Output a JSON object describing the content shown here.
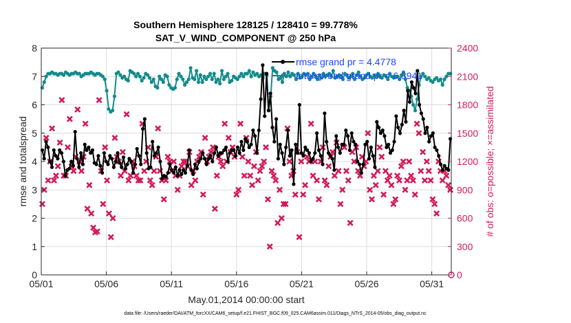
{
  "chart_data": {
    "type": "line",
    "title_line1": "Southern Hemisphere 128125 / 128410 = 99.778%",
    "title_line2": "SAT_V_WIND_COMPONENT @ 250 hPa",
    "xlabel": "May.01,2014 00:00:00 start",
    "ylabel_left": "rmse and totalspread",
    "ylabel_right": "# of obs: o=possible; ×=assimilated",
    "x_tick_labels": [
      "05/01",
      "05/06",
      "05/11",
      "05/16",
      "05/21",
      "05/26",
      "05/31"
    ],
    "x_tick_days": [
      0,
      5,
      10,
      15,
      20,
      25,
      30
    ],
    "xlim_days": [
      0,
      31.5
    ],
    "y_left_ticks": [
      "0",
      "1",
      "2",
      "3",
      "4",
      "5",
      "6",
      "7",
      "8"
    ],
    "ylim_left": [
      0,
      8
    ],
    "y_right_ticks": [
      "0",
      "300",
      "600",
      "900",
      "1200",
      "1500",
      "1800",
      "2100",
      "2400"
    ],
    "ylim_right": [
      0,
      2400
    ],
    "grid": true,
    "legend_position": "top-right",
    "legend": [
      "rmse grand pr = 4.4778",
      "totalspread grand pr = 6.8941"
    ],
    "colors": {
      "rmse": "#000000",
      "totalspread": "#128b8b",
      "obs": "#d11b5a",
      "legend_text": "#1a46ff"
    },
    "series": [
      {
        "name": "rmse grand pr = 4.4778",
        "axis": "left",
        "style": "line-dot",
        "values": [
          4.4,
          4.1,
          4.7,
          4.5,
          4.0,
          3.8,
          4.4,
          4.2,
          4.1,
          4.4,
          4.3,
          4.0,
          3.5,
          3.7,
          3.75,
          4.0,
          3.85,
          5.05,
          4.1,
          3.8,
          4.3,
          3.9,
          4.6,
          4.4,
          4.5,
          4.3,
          4.4,
          3.95,
          3.9,
          4.2,
          3.85,
          3.6,
          4.3,
          4.0,
          3.9,
          4.2,
          4.1,
          3.8,
          4.0,
          4.3,
          3.95,
          3.8,
          4.15,
          3.75,
          3.9,
          4.1,
          4.0,
          3.6,
          3.9,
          4.45,
          4.2,
          3.9,
          5.15,
          5.5,
          4.3,
          3.75,
          3.8,
          4.7,
          4.2,
          4.3,
          4.5,
          4.0,
          3.4,
          3.5,
          3.45,
          3.6,
          3.9,
          3.7,
          3.6,
          3.8,
          3.5,
          3.7,
          3.55,
          3.7,
          3.6,
          3.85,
          4.4,
          3.7,
          3.55,
          3.9,
          3.75,
          4.0,
          4.1,
          4.3,
          4.1,
          3.9,
          4.1,
          4.2,
          4.0,
          4.3,
          4.5,
          4.2,
          4.3,
          4.3,
          4.4,
          4.5,
          4.0,
          4.3,
          4.4,
          4.4,
          4.2,
          4.5,
          4.3,
          4.7,
          4.4,
          4.8,
          4.7,
          4.5,
          4.6,
          5.1,
          4.9,
          4.3,
          5.1,
          6.2,
          7.4,
          5.6,
          7.1,
          5.8,
          6.4,
          5.2,
          4.7,
          5.5,
          4.1,
          4.6,
          4.3,
          3.9,
          4.5,
          5.1,
          4.2,
          4.4,
          3.2,
          4.6,
          4.3,
          6.0,
          4.3,
          4.2,
          4.5,
          4.4,
          4.3,
          4.0,
          4.1,
          4.3,
          5.0,
          4.4,
          4.2,
          3.9,
          5.7,
          4.7,
          4.3,
          4.2,
          4.1,
          3.7,
          4.9,
          4.5,
          4.3,
          4.6,
          4.6,
          5.1,
          4.9,
          4.4,
          5.0,
          4.7,
          4.6,
          4.0,
          3.9,
          3.6,
          3.9,
          4.6,
          4.7,
          4.1,
          4.5,
          4.2,
          3.8,
          5.4,
          5.2,
          5.0,
          5.1,
          4.9,
          4.5,
          4.6,
          4.3,
          4.4,
          4.7,
          5.6,
          5.2,
          5.0,
          5.3,
          5.8,
          5.4,
          6.5,
          6.1,
          6.8,
          6.6,
          6.4,
          7.2,
          6.0,
          5.7,
          5.5,
          5.0,
          5.2,
          4.7,
          4.9,
          5.0,
          4.5,
          4.4,
          4.2,
          3.9,
          3.7,
          3.85,
          3.75,
          3.7,
          4.8
        ]
      },
      {
        "name": "totalspread grand pr = 6.8941",
        "axis": "left",
        "style": "line-dot",
        "values": [
          6.6,
          6.8,
          7.0,
          7.1,
          7.1,
          7.15,
          7.1,
          7.1,
          7.05,
          7.1,
          7.1,
          7.05,
          7.15,
          7.1,
          7.05,
          7.1,
          7.1,
          7.15,
          7.1,
          7.1,
          7.0,
          7.05,
          7.1,
          7.1,
          7.1,
          7.15,
          7.1,
          7.05,
          7.1,
          7.1,
          7.05,
          7.0,
          6.9,
          6.5,
          5.85,
          5.75,
          5.8,
          6.3,
          7.1,
          7.15,
          7.05,
          6.95,
          7.0,
          6.9,
          6.85,
          7.2,
          7.15,
          7.1,
          7.0,
          7.1,
          7.0,
          6.85,
          6.95,
          7.1,
          7.05,
          6.95,
          6.8,
          6.9,
          6.65,
          6.6,
          7.0,
          6.9,
          6.8,
          7.05,
          7.0,
          6.7,
          6.6,
          6.55,
          6.6,
          6.9,
          7.1,
          7.0,
          6.9,
          6.7,
          6.8,
          6.9,
          7.3,
          6.95,
          6.9,
          7.2,
          6.8,
          7.05,
          6.8,
          7.0,
          6.9,
          7.0,
          7.1,
          6.9,
          7.1,
          6.8,
          6.9,
          6.75,
          7.2,
          6.9,
          7.0,
          7.1,
          6.8,
          6.85,
          7.0,
          6.95,
          6.9,
          7.0,
          7.1,
          7.0,
          7.1,
          7.1,
          7.2,
          7.0,
          7.15,
          7.05,
          7.1,
          7.0,
          7.05,
          6.95,
          7.1,
          7.05,
          5.8,
          6.3,
          7.3,
          7.2,
          7.15,
          6.9,
          6.95,
          6.8,
          7.1,
          7.0,
          7.15,
          7.0,
          7.1,
          7.05,
          6.9,
          7.1,
          6.95,
          7.0,
          7.1,
          7.05,
          7.1,
          6.9,
          7.0,
          7.1,
          7.0,
          6.9,
          7.05,
          6.95,
          7.1,
          7.0,
          7.05,
          7.1,
          7.0,
          7.2,
          6.95,
          7.0,
          7.05,
          7.0,
          6.9,
          7.1,
          7.05,
          6.95,
          7.0,
          7.1,
          6.9,
          7.05,
          7.15,
          7.0,
          6.9,
          6.95,
          7.05,
          7.1,
          7.0,
          6.95,
          7.05,
          7.0,
          7.1,
          7.0,
          6.95,
          7.05,
          7.0,
          6.9,
          7.1,
          7.0,
          6.95,
          7.0,
          7.0,
          6.9,
          7.05,
          7.15,
          6.9,
          6.6,
          6.5,
          6.3,
          6.0,
          5.8,
          6.2,
          6.7,
          7.0,
          7.1,
          7.0,
          6.9,
          6.95,
          6.85,
          6.8,
          6.9,
          6.95,
          6.85,
          6.9,
          6.7,
          6.9,
          7.0,
          7.1,
          7.1
        ]
      },
      {
        "name": "",
        "axis": "right",
        "style": "marker-x",
        "values": [
          750,
          900,
          1450,
          1000,
          1200,
          1550,
          1000,
          1050,
          1150,
          1400,
          1850,
          1050,
          1050,
          1350,
          1650,
          1150,
          1100,
          1250,
          1750,
          1200,
          1100,
          1250,
          1600,
          700,
          950,
          650,
          500,
          450,
          460,
          1850,
          1100,
          750,
          1350,
          1000,
          650,
          400,
          600,
          1450,
          1250,
          1200,
          1050,
          1300,
          1100,
          1700,
          1000,
          1050,
          1200,
          1150,
          1050,
          1000,
          1000,
          1600,
          1100,
          1200,
          1350,
          1000,
          950,
          1100,
          1250,
          1550,
          1100,
          1000,
          800,
          1000,
          1250,
          1200,
          1100,
          1200,
          1050,
          900,
          1050,
          1150,
          1200,
          1200,
          1150,
          1300,
          950,
          1100,
          1000,
          1200,
          1250,
          1300,
          850,
          1450,
          1200,
          1250,
          1300,
          1350,
          700,
          1050,
          1250,
          1200,
          1150,
          1600,
          1200,
          1450,
          1300,
          1350,
          1250,
          850,
          900,
          1600,
          1250,
          1050,
          1450,
          1200,
          1050,
          950,
          1150,
          1300,
          1000,
          1100,
          1150,
          1200,
          1350,
          800,
          300,
          1100,
          1050,
          1000,
          550,
          900,
          600,
          750,
          750,
          1550,
          1200,
          1050,
          1100,
          850,
          1300,
          400,
          1200,
          850,
          950,
          1250,
          1200,
          1600,
          1050,
          1200,
          1000,
          800,
          1200,
          1350,
          1000,
          950,
          1150,
          1250,
          1300,
          1050,
          1400,
          1100,
          750,
          900,
          1350,
          1100,
          1000,
          550,
          1300,
          1200,
          1350,
          1100,
          1050,
          1250,
          1150,
          1200,
          1500,
          900,
          800,
          1050,
          950,
          1100,
          1350,
          1250,
          850,
          1100,
          1000,
          1050,
          950,
          750,
          800,
          1050,
          1000,
          1150,
          1200,
          900,
          1000,
          1200,
          1050,
          1000,
          850,
          1600,
          1500,
          1100,
          1300,
          1000,
          1200,
          1100,
          1000,
          800,
          750,
          650,
          1200,
          1100,
          1000,
          1100,
          1050,
          950,
          900
        ]
      }
    ],
    "footnote": "data file: /Users/raeder/DAI/ATM_forcXX/CAM6_setup/f.e21.FHIST_BGC.f09_025.CAM6assim.011/Diags_NTrS_2014-05/obs_diag_output.nc"
  }
}
